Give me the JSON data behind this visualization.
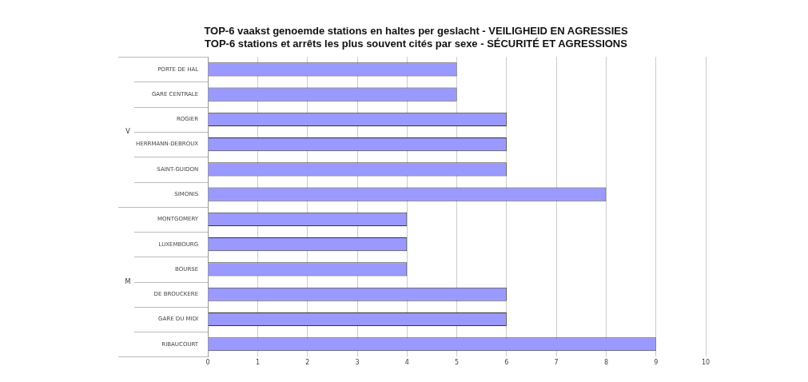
{
  "chart_data": {
    "type": "bar",
    "orientation": "horizontal",
    "title": [
      "TOP-6 vaakst genoemde stations en haltes per geslacht - VEILIGHEID EN AGRESSIES",
      "TOP-6 stations et arrêts les plus souvent cités par sexe - SÉCURITÉ ET AGRESSIONS"
    ],
    "categories": [
      "PORTE DE HAL",
      "GARE CENTRALE",
      "ROGIER",
      "HERRMANN-DEBROUX",
      "SAINT-GUIDON",
      "SIMONIS",
      "MONTGOMERY",
      "LUXEMBOURG",
      "BOURSE",
      "DE BROUCKERE",
      "GARE DU MIDI",
      "RIBAUCOURT"
    ],
    "values": [
      5,
      5,
      6,
      6,
      6,
      8,
      4,
      4,
      4,
      6,
      6,
      9
    ],
    "color": "#9999ff",
    "xlim": [
      0,
      10
    ],
    "xticks": [
      0,
      1,
      2,
      3,
      4,
      5,
      6,
      7,
      8,
      9,
      10
    ],
    "grid": "x",
    "legend": false,
    "annotations": [
      "V",
      "M"
    ]
  }
}
